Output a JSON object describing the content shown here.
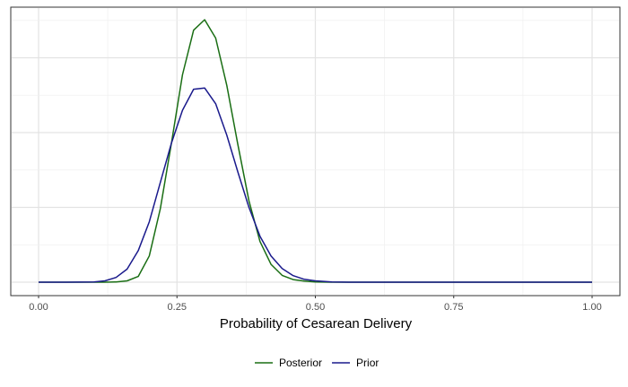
{
  "chart_data": {
    "type": "line",
    "title": "",
    "xlabel": "Probability of Cesarean Delivery",
    "ylabel": "",
    "xlim": [
      0,
      1
    ],
    "ylim": [
      0,
      1
    ],
    "x_ticks": [
      "0.00",
      "0.25",
      "0.50",
      "0.75",
      "1.00"
    ],
    "y_tick_labels_shown": false,
    "grid": true,
    "legend_position": "bottom",
    "x": [
      0.0,
      0.05,
      0.1,
      0.12,
      0.14,
      0.16,
      0.18,
      0.2,
      0.22,
      0.24,
      0.26,
      0.28,
      0.3,
      0.32,
      0.34,
      0.36,
      0.38,
      0.4,
      0.42,
      0.44,
      0.46,
      0.48,
      0.5,
      0.53,
      0.56,
      0.6,
      0.7,
      0.8,
      0.9,
      1.0
    ],
    "series": [
      {
        "name": "Posterior",
        "color": "#1a6e14",
        "values": [
          0.0,
          0.0,
          0.0,
          0.0,
          0.001,
          0.005,
          0.022,
          0.1,
          0.28,
          0.53,
          0.79,
          0.96,
          1.0,
          0.93,
          0.75,
          0.525,
          0.31,
          0.155,
          0.068,
          0.026,
          0.01,
          0.004,
          0.001,
          0.0,
          0.0,
          0.0,
          0.0,
          0.0,
          0.0,
          0.0
        ]
      },
      {
        "name": "Prior",
        "color": "#1a1a8c",
        "values": [
          0.0,
          0.0,
          0.001,
          0.005,
          0.018,
          0.05,
          0.12,
          0.23,
          0.38,
          0.53,
          0.655,
          0.735,
          0.74,
          0.68,
          0.56,
          0.42,
          0.285,
          0.175,
          0.1,
          0.052,
          0.025,
          0.011,
          0.005,
          0.001,
          0.0,
          0.0,
          0.0,
          0.0,
          0.0,
          0.0
        ]
      }
    ],
    "legend_order": [
      "Posterior",
      "Prior"
    ]
  }
}
